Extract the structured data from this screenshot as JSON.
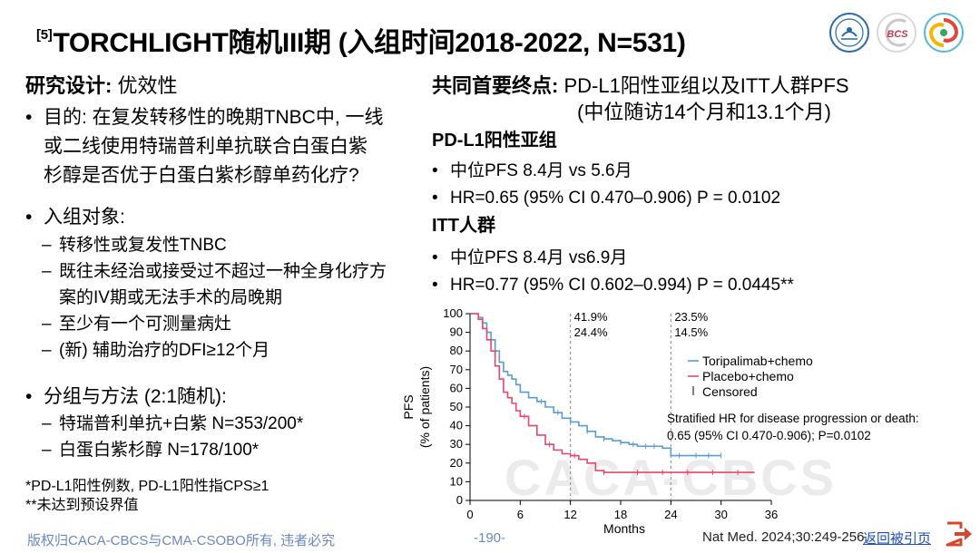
{
  "title": {
    "ref": "[5]",
    "text": "TORCHLIGHT随机III期 (入组时间2018-2022, N=531)"
  },
  "left": {
    "design_label": "研究设计:",
    "design_value": " 优效性",
    "purpose_lines": [
      "目的: 在复发转移性的晚期TNBC中, 一线",
      "或二线使用特瑞普利单抗联合白蛋白紫",
      "杉醇是否优于白蛋白紫杉醇单药化疗?"
    ],
    "enroll_head": "入组对象:",
    "enroll_items": [
      "转移性或复发性TNBC",
      "既往未经治或接受过不超过一种全身化疗方",
      "案的IV期或无法手术的局晚期",
      "至少有一个可测量病灶",
      "(新) 辅助治疗的DFI≥12个月"
    ],
    "group_head": "分组与方法 (2:1随机):",
    "group_items": [
      "特瑞普利单抗+白紫 N=353/200*",
      "白蛋白紫杉醇 N=178/100*"
    ],
    "notes": [
      "*PD-L1阳性例数, PD-L1阳性指CPS≥1",
      "**未达到预设界值"
    ]
  },
  "right": {
    "endpoint_label": "共同首要终点:",
    "endpoint_value": " PD-L1阳性亚组以及ITT人群PFS",
    "endpoint_followup": "(中位随访14个月和13.1个月)",
    "pdl1_head": "PD-L1阳性亚组",
    "pdl1_items": [
      "中位PFS 8.4月 vs 5.6月",
      "HR=0.65 (95% CI 0.470–0.906) P = 0.0102"
    ],
    "itt_head": "ITT人群",
    "itt_items": [
      "中位PFS 8.4月 vs6.9月",
      "HR=0.77 (95% CI 0.602–0.994) P = 0.0445**"
    ]
  },
  "chart_data": {
    "type": "line",
    "title": "",
    "ylabel_lines": [
      "PFS",
      "(% of patients)"
    ],
    "xlabel": "Months",
    "xlim": [
      0,
      36
    ],
    "ylim": [
      0,
      100
    ],
    "x_ticks": [
      0,
      6,
      12,
      18,
      24,
      30,
      36
    ],
    "y_ticks": [
      0,
      10,
      20,
      30,
      40,
      50,
      60,
      70,
      80,
      90,
      100
    ],
    "landmarks": [
      {
        "x": 12,
        "labels": [
          "41.9%",
          "24.4%"
        ]
      },
      {
        "x": 24,
        "labels": [
          "23.5%",
          "14.5%"
        ]
      }
    ],
    "series": [
      {
        "name": "Toripalimab+chemo",
        "color": "#5b9bd5",
        "x": [
          0,
          1,
          1.5,
          2,
          2.5,
          3,
          3.5,
          4,
          4.5,
          5,
          5.5,
          6,
          7,
          8,
          9,
          10,
          11,
          12,
          13,
          14,
          15,
          16,
          17,
          18,
          19,
          20,
          21,
          22,
          23,
          24,
          27,
          30
        ],
        "y": [
          100,
          98,
          95,
          90,
          86,
          80,
          74,
          69,
          67,
          65,
          62,
          58,
          55,
          53,
          50,
          47,
          44,
          42,
          40,
          37,
          34,
          33,
          32,
          31,
          30,
          29,
          29,
          29,
          28,
          24,
          24,
          24
        ],
        "censor_x": [
          8.5,
          10.5,
          14,
          16,
          18,
          19.5,
          21,
          22,
          25,
          27,
          28.5,
          30
        ]
      },
      {
        "name": "Placebo+chemo",
        "color": "#e8476b",
        "x": [
          0,
          1,
          1.5,
          2,
          2.5,
          3,
          3.5,
          4,
          4.5,
          5,
          5.5,
          6,
          7,
          8,
          9,
          10,
          11,
          12,
          13,
          14,
          15,
          16,
          18,
          20,
          22,
          24,
          28,
          34
        ],
        "y": [
          100,
          97,
          92,
          86,
          80,
          72,
          65,
          58,
          55,
          52,
          48,
          45,
          40,
          35,
          30,
          27,
          25,
          24,
          22,
          20,
          16,
          15,
          15,
          15,
          15,
          15,
          15,
          15
        ],
        "censor_x": [
          6.5,
          9.5,
          12.5,
          16,
          20,
          23,
          26,
          29,
          32
        ]
      }
    ],
    "legend": {
      "placement": "right",
      "censored_label": "Censored"
    },
    "annotation_lines": [
      "Stratified HR for disease progression or death:",
      "0.65 (95% CI 0.470-0.906); P=0.0102"
    ]
  },
  "footer": {
    "copyright": "版权归CACA-CBCS与CMA-CSOBO所有, 违者必究",
    "page": "-190-",
    "source": "Nat Med. 2024;30:249-256.",
    "return_link": "返回被引页",
    "watermark": "CACA-CBCS"
  },
  "logos": [
    {
      "name": "society-seal",
      "color": "#2b6aa8"
    },
    {
      "name": "bcs-logo",
      "text": "BCS",
      "color": "#c23a4e"
    },
    {
      "name": "swirl-logo",
      "color": "#e0463c"
    }
  ],
  "icons": {
    "return": "return-arrow-icon",
    "return_color": "#d9452d"
  }
}
